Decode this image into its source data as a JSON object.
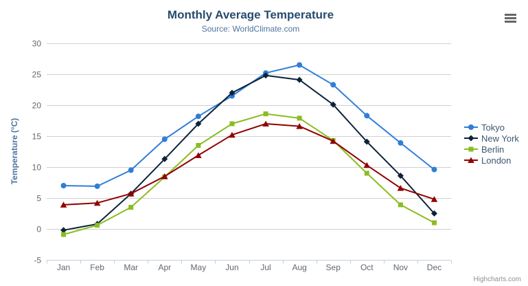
{
  "chart": {
    "credits": "Highcharts.com",
    "context_menu_tooltip": "Chart context menu"
  },
  "colors": {
    "background": "#ffffff",
    "title": "#274b6d",
    "subtitle": "#4d759e",
    "axis_title": "#4d759e",
    "axis_label": "#666666",
    "grid": "#d0d0d0",
    "axis_line": "#c0d0e0",
    "legend_text": "#3e576f",
    "credits": "#909090",
    "menu_icon": "#666666"
  },
  "chart_data": {
    "type": "line",
    "title": "Monthly Average Temperature",
    "subtitle": "Source: WorldClimate.com",
    "xlabel": "",
    "ylabel": "Temperature (°C)",
    "categories": [
      "Jan",
      "Feb",
      "Mar",
      "Apr",
      "May",
      "Jun",
      "Jul",
      "Aug",
      "Sep",
      "Oct",
      "Nov",
      "Dec"
    ],
    "ylim": [
      -5,
      30
    ],
    "ytick_interval": 5,
    "grid": true,
    "legend_position": "right",
    "series": [
      {
        "name": "Tokyo",
        "color": "#2f7ed8",
        "marker": "circle",
        "values": [
          7.0,
          6.9,
          9.5,
          14.5,
          18.2,
          21.5,
          25.2,
          26.5,
          23.3,
          18.3,
          13.9,
          9.6
        ]
      },
      {
        "name": "New York",
        "color": "#0d233a",
        "marker": "diamond",
        "values": [
          -0.2,
          0.8,
          5.7,
          11.3,
          17.0,
          22.0,
          24.8,
          24.1,
          20.1,
          14.1,
          8.6,
          2.5
        ]
      },
      {
        "name": "Berlin",
        "color": "#8bbc21",
        "marker": "square",
        "values": [
          -0.9,
          0.6,
          3.5,
          8.4,
          13.5,
          17.0,
          18.6,
          17.9,
          14.3,
          9.0,
          3.9,
          1.0
        ]
      },
      {
        "name": "London",
        "color": "#910000",
        "marker": "triangle",
        "values": [
          3.9,
          4.2,
          5.7,
          8.5,
          11.9,
          15.2,
          17.0,
          16.6,
          14.2,
          10.3,
          6.6,
          4.8
        ]
      }
    ]
  }
}
